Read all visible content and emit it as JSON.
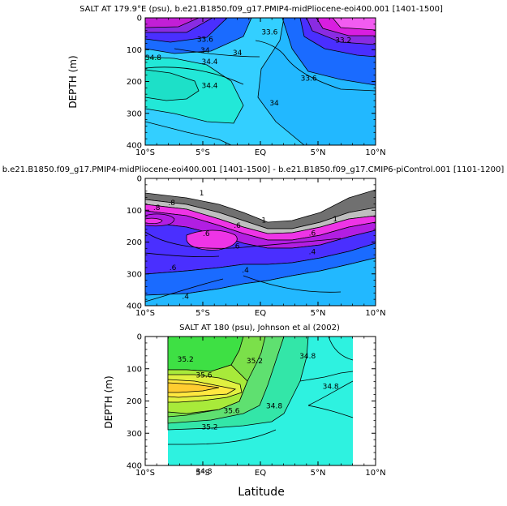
{
  "chart_data": [
    {
      "type": "contour",
      "title": "SALT AT 179.9°E (psu), b.e21.B1850.f09_g17.PMIP4-midPliocene-eoi400.001  [1401-1500]",
      "ylabel": "DEPTH (m)",
      "xlabel": "",
      "x_ticks": [
        "10°S",
        "5°S",
        "EQ",
        "5°N",
        "10°N"
      ],
      "y_ticks": [
        "0",
        "100",
        "200",
        "300",
        "400"
      ],
      "xlim": [
        -10,
        10
      ],
      "ylim": [
        400,
        0
      ],
      "contour_labels": [
        {
          "text": "33.6",
          "lat": -4.8,
          "depth": 68
        },
        {
          "text": "33.6",
          "lat": 0.8,
          "depth": 45
        },
        {
          "text": "33.2",
          "lat": 7.2,
          "depth": 70
        },
        {
          "text": "34.8",
          "lat": -9.3,
          "depth": 125
        },
        {
          "text": "34",
          "lat": -4.8,
          "depth": 102
        },
        {
          "text": "34",
          "lat": -2.0,
          "depth": 110
        },
        {
          "text": "34.4",
          "lat": -4.4,
          "depth": 138
        },
        {
          "text": "34.4",
          "lat": -4.4,
          "depth": 213
        },
        {
          "text": "33.6",
          "lat": 4.2,
          "depth": 190
        },
        {
          "text": "34",
          "lat": 1.2,
          "depth": 267
        }
      ]
    },
    {
      "type": "contour",
      "title": "b.e21.B1850.f09_g17.PMIP4-midPliocene-eoi400.001  [1401-1500]  - b.e21.B1850.f09_g17.CMIP6-piControl.001  [1101-1200]",
      "ylabel": "",
      "xlabel": "",
      "x_ticks": [
        "10°S",
        "5°S",
        "EQ",
        "5°N",
        "10°N"
      ],
      "y_ticks": [
        "0",
        "100",
        "200",
        "300",
        "400"
      ],
      "xlim": [
        -10,
        10
      ],
      "ylim": [
        400,
        0
      ],
      "contour_labels": [
        {
          "text": "1",
          "lat": -5.1,
          "depth": 46
        },
        {
          "text": ".8",
          "lat": -7.7,
          "depth": 77
        },
        {
          "text": "1",
          "lat": 0.3,
          "depth": 131
        },
        {
          "text": "1",
          "lat": 6.5,
          "depth": 128
        },
        {
          "text": ".8",
          "lat": -9.0,
          "depth": 92
        },
        {
          "text": ".6",
          "lat": -2.0,
          "depth": 148
        },
        {
          "text": ".6",
          "lat": 4.5,
          "depth": 172
        },
        {
          "text": ".6",
          "lat": -4.7,
          "depth": 173
        },
        {
          "text": ".6",
          "lat": -2.1,
          "depth": 213
        },
        {
          "text": ".6",
          "lat": -7.6,
          "depth": 280
        },
        {
          "text": ".4",
          "lat": 4.5,
          "depth": 231
        },
        {
          "text": ".4",
          "lat": -1.3,
          "depth": 288
        },
        {
          "text": ".4",
          "lat": -6.5,
          "depth": 371
        }
      ]
    },
    {
      "type": "contour",
      "title": "SALT AT 180 (psu), Johnson et al (2002)",
      "ylabel": "DEPTH (m)",
      "xlabel": "Latitude",
      "x_ticks": [
        "10°S",
        "5°S",
        "EQ",
        "5°N",
        "10°N"
      ],
      "y_ticks": [
        "0",
        "100",
        "200",
        "300",
        "400"
      ],
      "xlim": [
        -10,
        10
      ],
      "ylim": [
        400,
        0
      ],
      "data_extent": [
        -8,
        8
      ],
      "contour_labels": [
        {
          "text": "35.2",
          "lat": -6.5,
          "depth": 70
        },
        {
          "text": "35.2",
          "lat": -0.5,
          "depth": 75
        },
        {
          "text": "34.8",
          "lat": 4.1,
          "depth": 60
        },
        {
          "text": "35.6",
          "lat": -4.9,
          "depth": 120
        },
        {
          "text": "34.8",
          "lat": 6.1,
          "depth": 155
        },
        {
          "text": "35.6",
          "lat": -2.5,
          "depth": 230
        },
        {
          "text": "35.2",
          "lat": -4.4,
          "depth": 280
        },
        {
          "text": "34.8",
          "lat": 1.2,
          "depth": 215
        },
        {
          "text": "34.8",
          "lat": -4.9,
          "depth": 417
        }
      ]
    }
  ]
}
